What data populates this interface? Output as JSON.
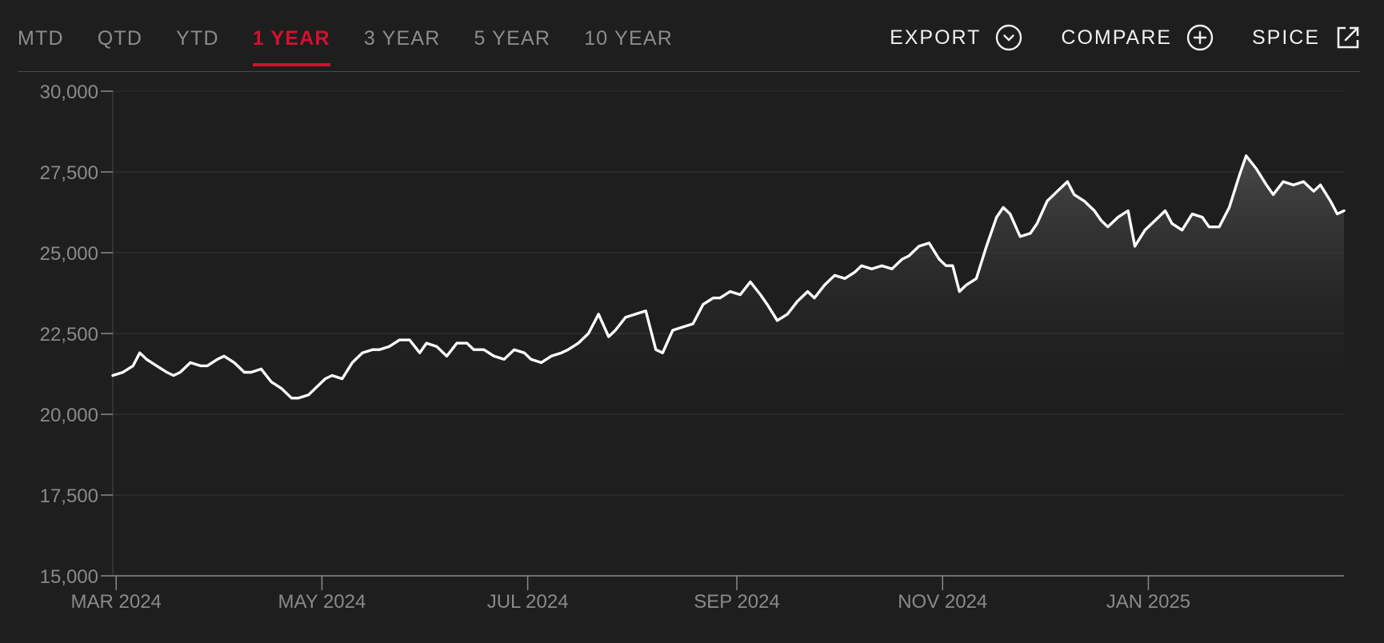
{
  "tabs": [
    {
      "label": "MTD",
      "active": false
    },
    {
      "label": "QTD",
      "active": false
    },
    {
      "label": "YTD",
      "active": false
    },
    {
      "label": "1 YEAR",
      "active": true
    },
    {
      "label": "3 YEAR",
      "active": false
    },
    {
      "label": "5 YEAR",
      "active": false
    },
    {
      "label": "10 YEAR",
      "active": false
    }
  ],
  "actions": {
    "export_label": "EXPORT",
    "export_icon": "chevron-down-circle-icon",
    "compare_label": "COMPARE",
    "compare_icon": "plus-circle-icon",
    "spice_label": "SPICE",
    "spice_icon": "external-link-icon"
  },
  "colors": {
    "background": "#1e1e1e",
    "accent": "#d4102f",
    "line": "#ffffff",
    "grid": "#333333",
    "tick_text": "#8a8a8a"
  },
  "chart_data": {
    "type": "area",
    "title": "",
    "xlabel": "",
    "ylabel": "",
    "ylim": [
      15000,
      30000
    ],
    "yticks": [
      30000,
      27500,
      25000,
      22500,
      20000,
      17500,
      15000
    ],
    "ytick_labels": [
      "30,000",
      "27,500",
      "25,000",
      "22,500",
      "20,000",
      "17,500",
      "15,000"
    ],
    "xlim": [
      "2024-02-29",
      "2025-02-28"
    ],
    "xticks": [
      "2024-03-01",
      "2024-05-01",
      "2024-07-01",
      "2024-09-01",
      "2024-11-01",
      "2025-01-01"
    ],
    "xtick_labels": [
      "MAR 2024",
      "MAY 2024",
      "JUL 2024",
      "SEP 2024",
      "NOV 2024",
      "JAN 2025"
    ],
    "grid": true,
    "fill_baseline": 20000,
    "series": [
      {
        "x": [
          "2024-02-29",
          "2024-03-03",
          "2024-03-06",
          "2024-03-08",
          "2024-03-10",
          "2024-03-13",
          "2024-03-16",
          "2024-03-18",
          "2024-03-20",
          "2024-03-23",
          "2024-03-26",
          "2024-03-28",
          "2024-03-31",
          "2024-04-02",
          "2024-04-05",
          "2024-04-08",
          "2024-04-10",
          "2024-04-13",
          "2024-04-16",
          "2024-04-19",
          "2024-04-22",
          "2024-04-24",
          "2024-04-27",
          "2024-04-30",
          "2024-05-02",
          "2024-05-04",
          "2024-05-07",
          "2024-05-10",
          "2024-05-13",
          "2024-05-16",
          "2024-05-18",
          "2024-05-21",
          "2024-05-24",
          "2024-05-27",
          "2024-05-30",
          "2024-06-01",
          "2024-06-04",
          "2024-06-07",
          "2024-06-10",
          "2024-06-13",
          "2024-06-15",
          "2024-06-18",
          "2024-06-21",
          "2024-06-24",
          "2024-06-27",
          "2024-06-30",
          "2024-07-02",
          "2024-07-05",
          "2024-07-08",
          "2024-07-11",
          "2024-07-13",
          "2024-07-16",
          "2024-07-19",
          "2024-07-22",
          "2024-07-25",
          "2024-07-27",
          "2024-07-30",
          "2024-08-02",
          "2024-08-05",
          "2024-08-08",
          "2024-08-10",
          "2024-08-13",
          "2024-08-16",
          "2024-08-19",
          "2024-08-22",
          "2024-08-25",
          "2024-08-27",
          "2024-08-30",
          "2024-09-02",
          "2024-09-05",
          "2024-09-08",
          "2024-09-10",
          "2024-09-13",
          "2024-09-16",
          "2024-09-19",
          "2024-09-22",
          "2024-09-24",
          "2024-09-27",
          "2024-09-30",
          "2024-10-03",
          "2024-10-06",
          "2024-10-08",
          "2024-10-11",
          "2024-10-14",
          "2024-10-17",
          "2024-10-20",
          "2024-10-22",
          "2024-10-25",
          "2024-10-28",
          "2024-10-31",
          "2024-11-02",
          "2024-11-04",
          "2024-11-06",
          "2024-11-08",
          "2024-11-11",
          "2024-11-14",
          "2024-11-17",
          "2024-11-19",
          "2024-11-21",
          "2024-11-24",
          "2024-11-27",
          "2024-11-29",
          "2024-12-02",
          "2024-12-05",
          "2024-12-08",
          "2024-12-10",
          "2024-12-13",
          "2024-12-16",
          "2024-12-18",
          "2024-12-20",
          "2024-12-23",
          "2024-12-26",
          "2024-12-28",
          "2024-12-31",
          "2025-01-03",
          "2025-01-06",
          "2025-01-08",
          "2025-01-11",
          "2025-01-14",
          "2025-01-17",
          "2025-01-19",
          "2025-01-22",
          "2025-01-25",
          "2025-01-28",
          "2025-01-30",
          "2025-02-02",
          "2025-02-05",
          "2025-02-07",
          "2025-02-10",
          "2025-02-13",
          "2025-02-16",
          "2025-02-19",
          "2025-02-21",
          "2025-02-24",
          "2025-02-26",
          "2025-02-28"
        ],
        "y": [
          21200,
          21300,
          21500,
          21900,
          21700,
          21500,
          21300,
          21200,
          21300,
          21600,
          21500,
          21500,
          21700,
          21800,
          21600,
          21300,
          21300,
          21400,
          21000,
          20800,
          20500,
          20500,
          20600,
          20900,
          21100,
          21200,
          21100,
          21600,
          21900,
          22000,
          22000,
          22100,
          22300,
          22300,
          21900,
          22200,
          22100,
          21800,
          22200,
          22200,
          22000,
          22000,
          21800,
          21700,
          22000,
          21900,
          21700,
          21600,
          21800,
          21900,
          22000,
          22200,
          22500,
          23100,
          22400,
          22600,
          23000,
          23100,
          23200,
          22000,
          21900,
          22600,
          22700,
          22800,
          23400,
          23600,
          23600,
          23800,
          23700,
          24100,
          23700,
          23400,
          22900,
          23100,
          23500,
          23800,
          23600,
          24000,
          24300,
          24200,
          24400,
          24600,
          24500,
          24600,
          24500,
          24800,
          24900,
          25200,
          25300,
          24800,
          24600,
          24600,
          23800,
          24000,
          24200,
          25200,
          26100,
          26400,
          26200,
          25500,
          25600,
          25900,
          26600,
          26900,
          27200,
          26800,
          26600,
          26300,
          26000,
          25800,
          26100,
          26300,
          25200,
          25700,
          26000,
          26300,
          25900,
          25700,
          26200,
          26100,
          25800,
          25800,
          26400,
          27400,
          28000,
          27600,
          27100,
          26800,
          27200,
          27100,
          27200,
          26900,
          27100,
          26600,
          26200,
          26300
        ]
      }
    ]
  }
}
